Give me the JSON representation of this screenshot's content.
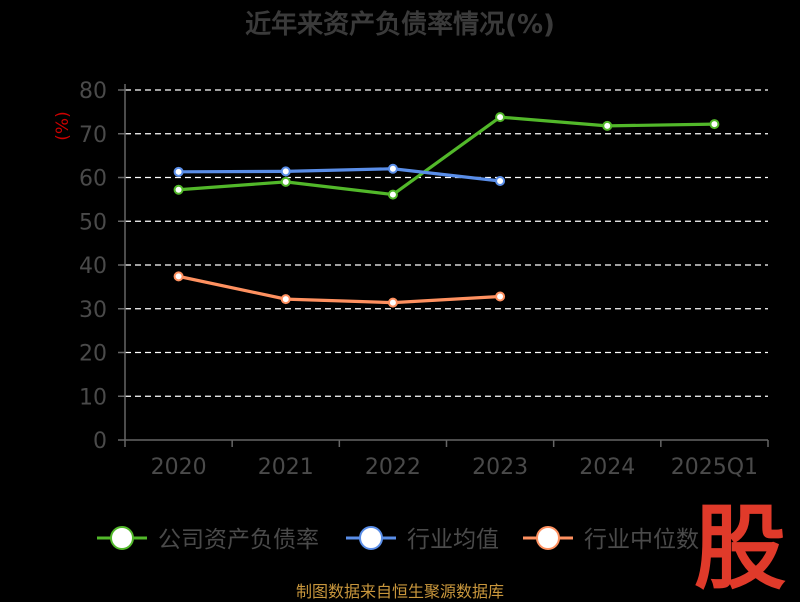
{
  "colors": {
    "background": "#000000",
    "axis": "#666666",
    "grid": "#ffffff",
    "tick_label": "#4a4a4a",
    "ylabel": "#cc0000",
    "title": "#3a3a3a",
    "source": "#c8963c",
    "watermark": "#e03a2a"
  },
  "watermark": {
    "text": "股"
  },
  "chart_data": {
    "type": "line",
    "title": "近年来资产负债率情况(%)",
    "xlabel": "",
    "ylabel": "(%)",
    "categories": [
      "2020",
      "2021",
      "2022",
      "2023",
      "2024",
      "2025Q1"
    ],
    "ylim": [
      0,
      80
    ],
    "yticks": [
      0,
      10,
      20,
      30,
      40,
      50,
      60,
      70,
      80
    ],
    "grid": true,
    "legend_position": "bottom",
    "series": [
      {
        "name": "公司资产负债率",
        "color": "#52b82a",
        "values": [
          57.2,
          59.0,
          56.1,
          73.8,
          71.8,
          72.2
        ]
      },
      {
        "name": "行业均值",
        "color": "#5a8ee8",
        "values": [
          61.3,
          61.4,
          62.0,
          59.2,
          null,
          null
        ]
      },
      {
        "name": "行业中位数",
        "color": "#ff9160",
        "values": [
          37.4,
          32.2,
          31.4,
          32.8,
          null,
          null
        ]
      }
    ]
  },
  "source_note": "制图数据来自恒生聚源数据库"
}
